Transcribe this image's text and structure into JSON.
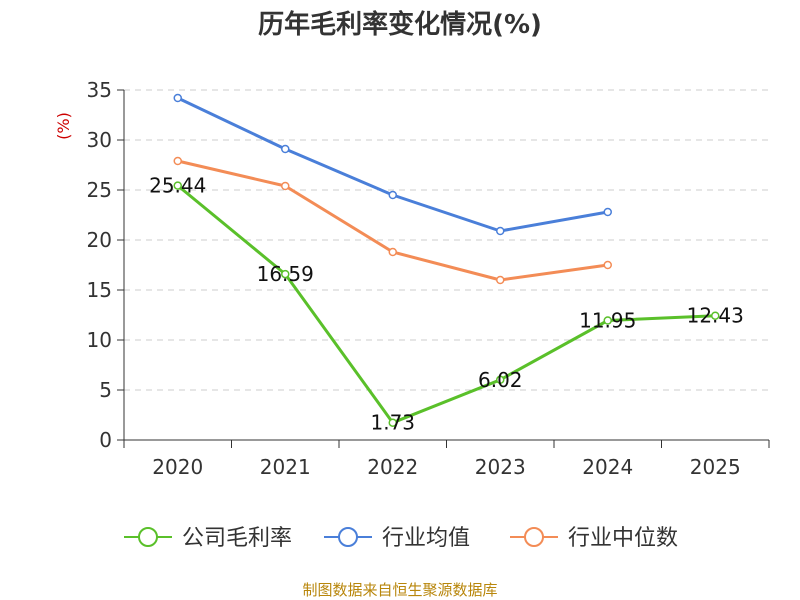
{
  "chart_data": {
    "type": "line",
    "title": "历年毛利率变化情况(%)",
    "ylabel": "(%)",
    "xlabel": "",
    "categories": [
      "2020",
      "2021",
      "2022",
      "2023",
      "2024",
      "2025"
    ],
    "ylim": [
      0,
      35
    ],
    "yticks": [
      0,
      5,
      10,
      15,
      20,
      25,
      30,
      35
    ],
    "grid": true,
    "legend_position": "bottom",
    "series": [
      {
        "name": "公司毛利率",
        "color": "#5ac02a",
        "values": [
          25.44,
          16.59,
          1.73,
          6.02,
          11.95,
          12.43
        ],
        "labels": [
          "25.44",
          "16.59",
          "1.73",
          "6.02",
          "11.95",
          "12.43"
        ]
      },
      {
        "name": "行业均值",
        "color": "#4a7fd9",
        "values": [
          34.2,
          29.1,
          24.5,
          20.9,
          22.8,
          null
        ]
      },
      {
        "name": "行业中位数",
        "color": "#f38c56",
        "values": [
          27.9,
          25.4,
          18.8,
          16.0,
          17.5,
          null
        ]
      }
    ],
    "ylabel_color": "#cc0000"
  },
  "source_note": "制图数据来自恒生聚源数据库"
}
